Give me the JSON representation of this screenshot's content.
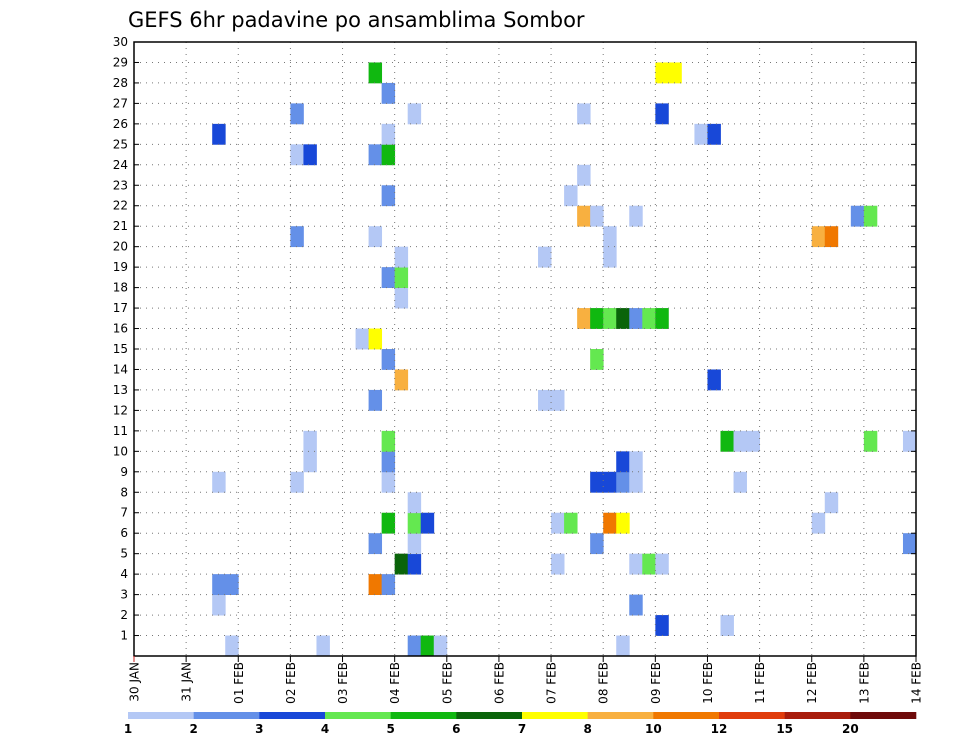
{
  "chart_data": {
    "type": "heatmap",
    "title": "GEFS 6hr padavine po ansamblima Sombor",
    "xlabel": "",
    "ylabel": "",
    "x_tick_labels": [
      "30 JAN",
      "31 JAN",
      "01 FEB",
      "02 FEB",
      "03 FEB",
      "04 FEB",
      "05 FEB",
      "06 FEB",
      "07 FEB",
      "08 FEB",
      "09 FEB",
      "10 FEB",
      "11 FEB",
      "12 FEB",
      "13 FEB",
      "14 FEB"
    ],
    "y_tick_labels": [
      "1",
      "2",
      "3",
      "4",
      "5",
      "6",
      "7",
      "8",
      "9",
      "10",
      "11",
      "12",
      "13",
      "14",
      "15",
      "16",
      "17",
      "18",
      "19",
      "20",
      "21",
      "22",
      "23",
      "24",
      "25",
      "26",
      "27",
      "28",
      "29",
      "30"
    ],
    "xlim": [
      0,
      60
    ],
    "ylim": [
      0,
      30
    ],
    "grid": true,
    "colorbar": {
      "levels": [
        "1",
        "2",
        "3",
        "4",
        "5",
        "6",
        "7",
        "8",
        "10",
        "12",
        "15",
        "20"
      ],
      "colors": [
        "#b4c8f5",
        "#6490e8",
        "#1848d8",
        "#64e850",
        "#10b810",
        "#0a640a",
        "#ffff00",
        "#f8b040",
        "#f07800",
        "#e03c0c",
        "#a81c0c",
        "#6e0a0a"
      ]
    },
    "cells": [
      {
        "t": 7,
        "m": 0,
        "c": 1
      },
      {
        "t": 14,
        "m": 0,
        "c": 1
      },
      {
        "t": 21,
        "m": 0,
        "c": 2
      },
      {
        "t": 22,
        "m": 0,
        "c": 5
      },
      {
        "t": 23,
        "m": 0,
        "c": 1
      },
      {
        "t": 37,
        "m": 0,
        "c": 1
      },
      {
        "t": 40,
        "m": 1,
        "c": 3
      },
      {
        "t": 45,
        "m": 1,
        "c": 1
      },
      {
        "t": 38,
        "m": 2,
        "c": 2
      },
      {
        "t": 6,
        "m": 2,
        "c": 1
      },
      {
        "t": 6,
        "m": 3,
        "c": 2
      },
      {
        "t": 7,
        "m": 3,
        "c": 2
      },
      {
        "t": 18,
        "m": 3,
        "c": 9
      },
      {
        "t": 19,
        "m": 3,
        "c": 2
      },
      {
        "t": 20,
        "m": 4,
        "c": 6
      },
      {
        "t": 21,
        "m": 4,
        "c": 3
      },
      {
        "t": 32,
        "m": 4,
        "c": 1
      },
      {
        "t": 38,
        "m": 4,
        "c": 1
      },
      {
        "t": 39,
        "m": 4,
        "c": 4
      },
      {
        "t": 40,
        "m": 4,
        "c": 1
      },
      {
        "t": 18,
        "m": 5,
        "c": 2
      },
      {
        "t": 21,
        "m": 5,
        "c": 1
      },
      {
        "t": 35,
        "m": 5,
        "c": 2
      },
      {
        "t": 59,
        "m": 5,
        "c": 2
      },
      {
        "t": 19,
        "m": 6,
        "c": 5
      },
      {
        "t": 21,
        "m": 6,
        "c": 4
      },
      {
        "t": 22,
        "m": 6,
        "c": 3
      },
      {
        "t": 32,
        "m": 6,
        "c": 1
      },
      {
        "t": 33,
        "m": 6,
        "c": 4
      },
      {
        "t": 36,
        "m": 6,
        "c": 9
      },
      {
        "t": 37,
        "m": 6,
        "c": 7
      },
      {
        "t": 52,
        "m": 6,
        "c": 1
      },
      {
        "t": 21,
        "m": 7,
        "c": 1
      },
      {
        "t": 53,
        "m": 7,
        "c": 1
      },
      {
        "t": 6,
        "m": 8,
        "c": 1
      },
      {
        "t": 12,
        "m": 8,
        "c": 1
      },
      {
        "t": 19,
        "m": 8,
        "c": 1
      },
      {
        "t": 35,
        "m": 8,
        "c": 3
      },
      {
        "t": 36,
        "m": 8,
        "c": 3
      },
      {
        "t": 37,
        "m": 8,
        "c": 2
      },
      {
        "t": 38,
        "m": 8,
        "c": 1
      },
      {
        "t": 46,
        "m": 8,
        "c": 1
      },
      {
        "t": 13,
        "m": 9,
        "c": 1
      },
      {
        "t": 19,
        "m": 9,
        "c": 2
      },
      {
        "t": 37,
        "m": 9,
        "c": 3
      },
      {
        "t": 38,
        "m": 9,
        "c": 1
      },
      {
        "t": 13,
        "m": 10,
        "c": 1
      },
      {
        "t": 19,
        "m": 10,
        "c": 4
      },
      {
        "t": 45,
        "m": 10,
        "c": 5
      },
      {
        "t": 46,
        "m": 10,
        "c": 1
      },
      {
        "t": 47,
        "m": 10,
        "c": 1
      },
      {
        "t": 56,
        "m": 10,
        "c": 4
      },
      {
        "t": 59,
        "m": 10,
        "c": 1
      },
      {
        "t": 18,
        "m": 12,
        "c": 2
      },
      {
        "t": 31,
        "m": 12,
        "c": 1
      },
      {
        "t": 32,
        "m": 12,
        "c": 1
      },
      {
        "t": 20,
        "m": 13,
        "c": 8
      },
      {
        "t": 44,
        "m": 13,
        "c": 3
      },
      {
        "t": 19,
        "m": 14,
        "c": 2
      },
      {
        "t": 35,
        "m": 14,
        "c": 4
      },
      {
        "t": 17,
        "m": 15,
        "c": 1
      },
      {
        "t": 18,
        "m": 15,
        "c": 7
      },
      {
        "t": 34,
        "m": 16,
        "c": 8
      },
      {
        "t": 35,
        "m": 16,
        "c": 5
      },
      {
        "t": 36,
        "m": 16,
        "c": 4
      },
      {
        "t": 37,
        "m": 16,
        "c": 6
      },
      {
        "t": 38,
        "m": 16,
        "c": 2
      },
      {
        "t": 39,
        "m": 16,
        "c": 4
      },
      {
        "t": 40,
        "m": 16,
        "c": 5
      },
      {
        "t": 20,
        "m": 17,
        "c": 1
      },
      {
        "t": 19,
        "m": 18,
        "c": 2
      },
      {
        "t": 20,
        "m": 18,
        "c": 4
      },
      {
        "t": 20,
        "m": 19,
        "c": 1
      },
      {
        "t": 31,
        "m": 19,
        "c": 1
      },
      {
        "t": 36,
        "m": 19,
        "c": 1
      },
      {
        "t": 12,
        "m": 20,
        "c": 2
      },
      {
        "t": 18,
        "m": 20,
        "c": 1
      },
      {
        "t": 36,
        "m": 20,
        "c": 1
      },
      {
        "t": 52,
        "m": 20,
        "c": 8
      },
      {
        "t": 53,
        "m": 20,
        "c": 9
      },
      {
        "t": 34,
        "m": 21,
        "c": 8
      },
      {
        "t": 35,
        "m": 21,
        "c": 1
      },
      {
        "t": 38,
        "m": 21,
        "c": 1
      },
      {
        "t": 55,
        "m": 21,
        "c": 2
      },
      {
        "t": 56,
        "m": 21,
        "c": 4
      },
      {
        "t": 19,
        "m": 22,
        "c": 2
      },
      {
        "t": 33,
        "m": 22,
        "c": 1
      },
      {
        "t": 34,
        "m": 23,
        "c": 1
      },
      {
        "t": 12,
        "m": 24,
        "c": 1
      },
      {
        "t": 13,
        "m": 24,
        "c": 3
      },
      {
        "t": 18,
        "m": 24,
        "c": 2
      },
      {
        "t": 19,
        "m": 24,
        "c": 5
      },
      {
        "t": 6,
        "m": 25,
        "c": 3
      },
      {
        "t": 19,
        "m": 25,
        "c": 1
      },
      {
        "t": 43,
        "m": 25,
        "c": 1
      },
      {
        "t": 44,
        "m": 25,
        "c": 3
      },
      {
        "t": 12,
        "m": 26,
        "c": 2
      },
      {
        "t": 21,
        "m": 26,
        "c": 1
      },
      {
        "t": 34,
        "m": 26,
        "c": 1
      },
      {
        "t": 40,
        "m": 26,
        "c": 3
      },
      {
        "t": 19,
        "m": 27,
        "c": 2
      },
      {
        "t": 18,
        "m": 28,
        "c": 5
      },
      {
        "t": 40,
        "m": 28,
        "c": 7
      },
      {
        "t": 41,
        "m": 28,
        "c": 7
      }
    ]
  }
}
